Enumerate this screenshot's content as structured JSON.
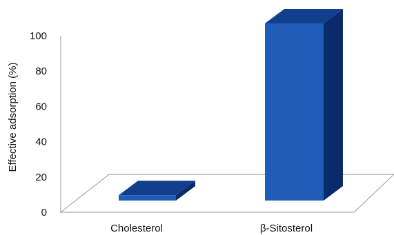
{
  "chart_data": {
    "type": "bar",
    "style": "3d-column",
    "categories": [
      "Cholesterol",
      "β-Sitosterol"
    ],
    "values": [
      3,
      100
    ],
    "title": "",
    "xlabel": "",
    "ylabel": "Effective adsorption (%)",
    "ylim": [
      0,
      100
    ],
    "yticks": [
      "0",
      "20",
      "40",
      "60",
      "80",
      "100"
    ],
    "grid": false,
    "legend": "none"
  },
  "colors": {
    "bar_front": "#1f5cb8",
    "bar_top": "#123f8c",
    "bar_side": "#0b2a6a",
    "axis": "#a9a9a9",
    "floor_fill": "#ffffff"
  }
}
